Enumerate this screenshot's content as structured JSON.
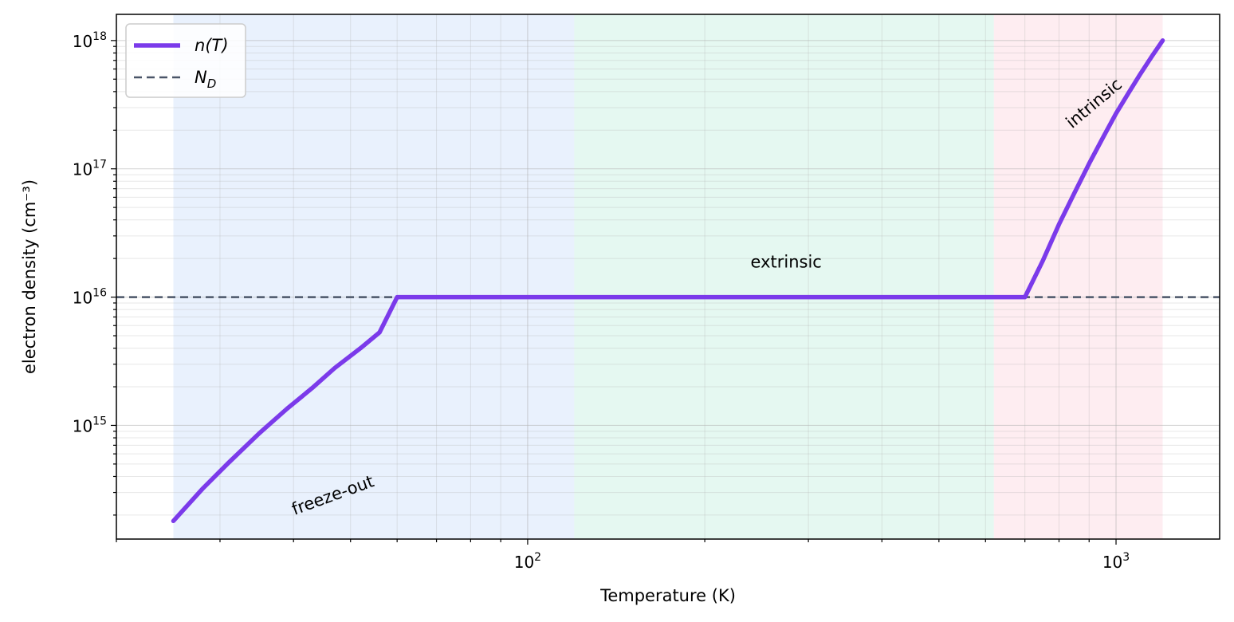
{
  "chart_data": {
    "type": "line",
    "title": "",
    "xlabel": "Temperature (K)",
    "ylabel": "electron density (cm⁻³)",
    "x_scale": "log",
    "y_scale": "log",
    "xlim": [
      20,
      1500
    ],
    "ylim": [
      130000000000000.0,
      1.6e+18
    ],
    "grid": true,
    "x_ticks": [
      {
        "value": 100,
        "base": "10",
        "exp": "2"
      },
      {
        "value": 1000,
        "base": "10",
        "exp": "3"
      }
    ],
    "y_ticks": [
      {
        "value": 1000000000000000.0,
        "base": "10",
        "exp": "15"
      },
      {
        "value": 1e+16,
        "base": "10",
        "exp": "16"
      },
      {
        "value": 1e+17,
        "base": "10",
        "exp": "17"
      },
      {
        "value": 1e+18,
        "base": "10",
        "exp": "18"
      }
    ],
    "regions": [
      {
        "from": 25,
        "to": 120,
        "color": "#dbe7fb"
      },
      {
        "from": 120,
        "to": 620,
        "color": "#d3f3e8"
      },
      {
        "from": 620,
        "to": 1200,
        "color": "#fde1e7"
      }
    ],
    "annotations": [
      {
        "text": "freeze-out",
        "x": 47,
        "y": 260000000000000.0,
        "rotation": -20
      },
      {
        "text": "extrinsic",
        "x": 275,
        "y": 1.7e+16,
        "rotation": 0
      },
      {
        "text": "intrinsic",
        "x": 930,
        "y": 3e+17,
        "rotation": -40
      }
    ],
    "legend": {
      "position": "top-left",
      "entries": [
        {
          "series": "n(T)",
          "label_base": "n",
          "label_paren": "(T)",
          "style": "solid",
          "color": "#7b3aea"
        },
        {
          "series": "N_D",
          "label_base": "N",
          "label_sub": "D",
          "style": "dashed",
          "color": "#4a5568"
        }
      ]
    },
    "series": [
      {
        "name": "n(T)",
        "color": "#7b3aea",
        "style": "solid",
        "x": [
          25,
          28,
          31,
          35,
          39,
          43,
          47,
          52,
          56,
          60,
          70,
          100,
          200,
          400,
          620,
          700,
          750,
          800,
          850,
          900,
          950,
          1000,
          1050,
          1100,
          1150,
          1200
        ],
        "y": [
          180000000000000.0,
          320000000000000.0,
          510000000000000.0,
          870000000000000.0,
          1350000000000000.0,
          1950000000000000.0,
          2800000000000000.0,
          4000000000000000.0,
          5300000000000000.0,
          1e+16,
          1e+16,
          1e+16,
          1e+16,
          1e+16,
          1e+16,
          1e+16,
          1.9e+16,
          3.7e+16,
          6.5e+16,
          1.1e+17,
          1.75e+17,
          2.7e+17,
          3.9e+17,
          5.5e+17,
          7.5e+17,
          1e+18
        ]
      },
      {
        "name": "N_D",
        "color": "#4a5568",
        "style": "dashed",
        "x": [
          20,
          1500
        ],
        "y": [
          1e+16,
          1e+16
        ]
      }
    ]
  }
}
